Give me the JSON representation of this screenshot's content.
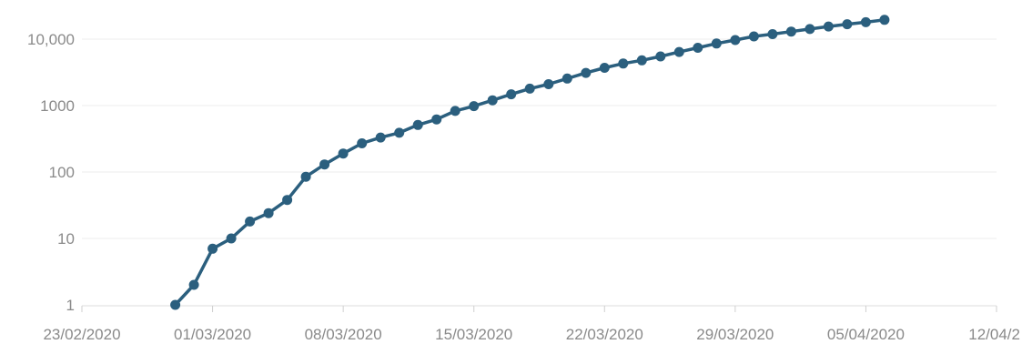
{
  "chart_data": {
    "type": "line",
    "title": "",
    "xlabel": "",
    "ylabel": "",
    "y_scale": "log",
    "ylim": [
      1,
      20000
    ],
    "xlim": [
      "23/02/2020",
      "12/04/2020"
    ],
    "grid": true,
    "legend": "none",
    "x_tick_labels": [
      "23/02/2020",
      "01/03/2020",
      "08/03/2020",
      "15/03/2020",
      "22/03/2020",
      "29/03/2020",
      "05/04/2020",
      "12/04/2"
    ],
    "y_tick_labels": [
      "1",
      "10",
      "100",
      "1000",
      "10,000"
    ],
    "y_tick_values": [
      1,
      10,
      100,
      1000,
      10000
    ],
    "series": [
      {
        "color": "#2b5f7e",
        "x": [
          "28/02/2020",
          "29/02/2020",
          "01/03/2020",
          "02/03/2020",
          "03/03/2020",
          "04/03/2020",
          "05/03/2020",
          "06/03/2020",
          "07/03/2020",
          "08/03/2020",
          "09/03/2020",
          "10/03/2020",
          "11/03/2020",
          "12/03/2020",
          "13/03/2020",
          "14/03/2020",
          "15/03/2020",
          "16/03/2020",
          "17/03/2020",
          "18/03/2020",
          "19/03/2020",
          "20/03/2020",
          "21/03/2020",
          "22/03/2020",
          "23/03/2020",
          "24/03/2020",
          "25/03/2020",
          "26/03/2020",
          "27/03/2020",
          "28/03/2020",
          "29/03/2020",
          "30/03/2020",
          "31/03/2020",
          "01/04/2020",
          "02/04/2020",
          "03/04/2020",
          "04/04/2020",
          "05/04/2020",
          "06/04/2020"
        ],
        "values": [
          1,
          2,
          7,
          10,
          18,
          24,
          38,
          85,
          130,
          190,
          270,
          330,
          390,
          510,
          620,
          830,
          980,
          1200,
          1480,
          1800,
          2100,
          2550,
          3100,
          3700,
          4300,
          4800,
          5500,
          6400,
          7400,
          8600,
          9700,
          11000,
          11900,
          13000,
          14200,
          15500,
          16800,
          18000,
          19500
        ]
      }
    ]
  }
}
